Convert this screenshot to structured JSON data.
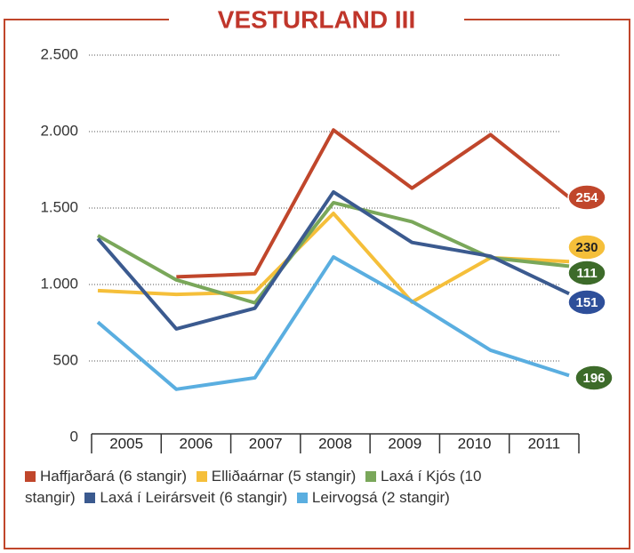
{
  "chart_data": {
    "type": "line",
    "title": "VESTURLAND III",
    "categories": [
      "2005",
      "2006",
      "2007",
      "2008",
      "2009",
      "2010",
      "2011"
    ],
    "series": [
      {
        "name": "Haffjarðará (6 stangir)",
        "color": "#c0462b",
        "values": [
          null,
          1050,
          1070,
          2010,
          1630,
          1980,
          1570
        ]
      },
      {
        "name": "Elliðaárnar (5 stangir)",
        "color": "#f5bf3a",
        "values": [
          960,
          935,
          950,
          1465,
          885,
          1175,
          1150
        ]
      },
      {
        "name": "Laxá í Kjós (10 stangir)",
        "color": "#7aa75a",
        "values": [
          1320,
          1030,
          880,
          1535,
          1410,
          1175,
          1120
        ]
      },
      {
        "name": "Laxá í Leirársveit (6 stangir)",
        "color": "#3b5a8f",
        "values": [
          1300,
          710,
          845,
          1605,
          1275,
          1185,
          940
        ]
      },
      {
        "name": "Leirvogsá (2 stangir)",
        "color": "#5aaee0",
        "values": [
          754,
          315,
          390,
          1180,
          890,
          570,
          405
        ]
      }
    ],
    "annotations": [
      {
        "text": "254",
        "color": "#c0462b"
      },
      {
        "text": "230",
        "color": "#f5bf3a"
      },
      {
        "text": "111",
        "color": "#3d6b2a"
      },
      {
        "text": "151",
        "color": "#2e4f9a"
      },
      {
        "text": "196",
        "color": "#3d6b2a"
      }
    ],
    "ylim": [
      0,
      2500
    ],
    "yticks": [
      0,
      {
        "value": 500,
        "label": "500"
      },
      {
        "value": 1000,
        "label": "1.000"
      },
      {
        "value": 1500,
        "label": "1.500"
      },
      {
        "value": 2000,
        "label": "2.000"
      },
      {
        "value": 2500,
        "label": "2.500"
      }
    ],
    "grid": true
  }
}
